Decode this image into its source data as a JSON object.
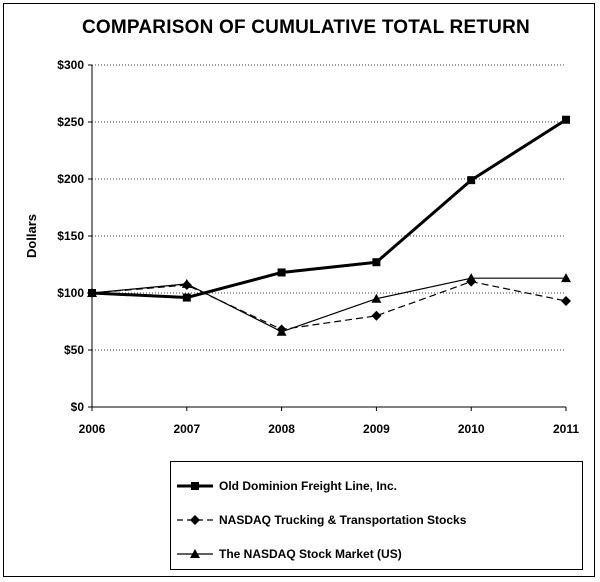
{
  "chart_data": {
    "type": "line",
    "title": "COMPARISON OF CUMULATIVE TOTAL RETURN",
    "xlabel": "",
    "ylabel": "Dollars",
    "categories": [
      "2006",
      "2007",
      "2008",
      "2009",
      "2010",
      "2011"
    ],
    "ylim": [
      0,
      300
    ],
    "yticks": [
      0,
      50,
      100,
      150,
      200,
      250,
      300
    ],
    "ytick_labels": [
      "$0",
      "$50",
      "$100",
      "$150",
      "$200",
      "$250",
      "$300"
    ],
    "grid": "horizontal dotted",
    "legend_position": "bottom",
    "series": [
      {
        "name": "Old Dominion Freight Line, Inc.",
        "marker": "square",
        "style": "solid-thick",
        "values": [
          100,
          96,
          118,
          127,
          199,
          252
        ]
      },
      {
        "name": "NASDAQ Trucking & Transportation Stocks",
        "marker": "diamond",
        "style": "dashed",
        "values": [
          100,
          107,
          68,
          80,
          110,
          93
        ]
      },
      {
        "name": "The NASDAQ Stock Market (US)",
        "marker": "triangle",
        "style": "solid-thin",
        "values": [
          100,
          108,
          66,
          95,
          113,
          113
        ]
      }
    ]
  }
}
